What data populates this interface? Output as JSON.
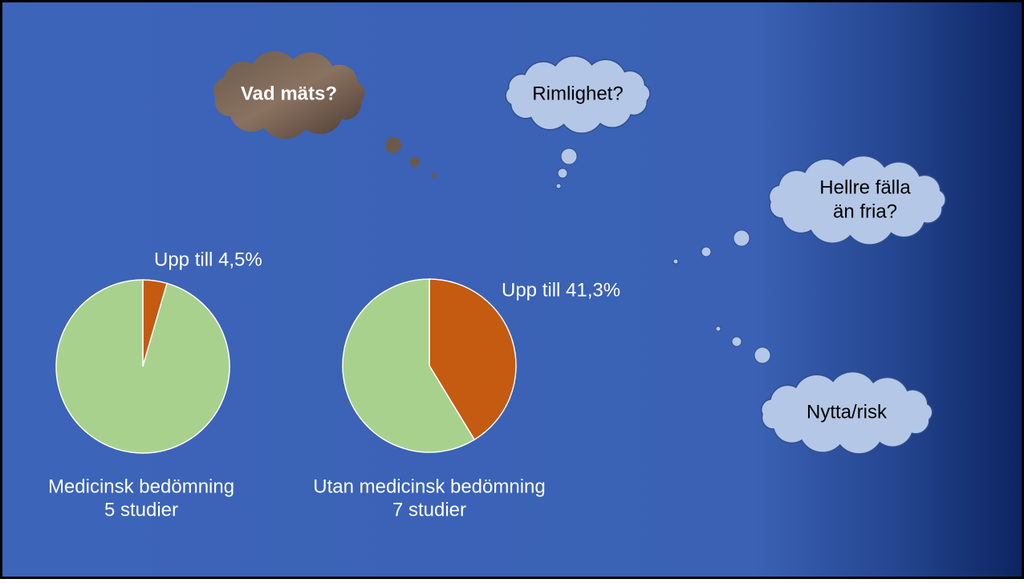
{
  "chart_data": [
    {
      "type": "pie",
      "title": "Medicinsk bedömning",
      "subtitle": "5 studier",
      "values": [
        4.5,
        95.5
      ],
      "value_labels": [
        "Upp till 4,5%",
        null
      ],
      "colors": [
        "#c55a11",
        "#a9d18e"
      ]
    },
    {
      "type": "pie",
      "title": "Utan medicinsk bedömning",
      "subtitle": "7 studier",
      "values": [
        41.3,
        58.7
      ],
      "value_labels": [
        "Upp till 41,3%",
        null
      ],
      "colors": [
        "#c55a11",
        "#a9d18e"
      ]
    }
  ],
  "clouds": [
    {
      "lines": [
        "Vad mäts?"
      ]
    },
    {
      "lines": [
        "Rimlighet?"
      ]
    },
    {
      "lines": [
        "Hellre fälla",
        "än fria?"
      ]
    },
    {
      "lines": [
        "Nytta/risk"
      ]
    }
  ]
}
